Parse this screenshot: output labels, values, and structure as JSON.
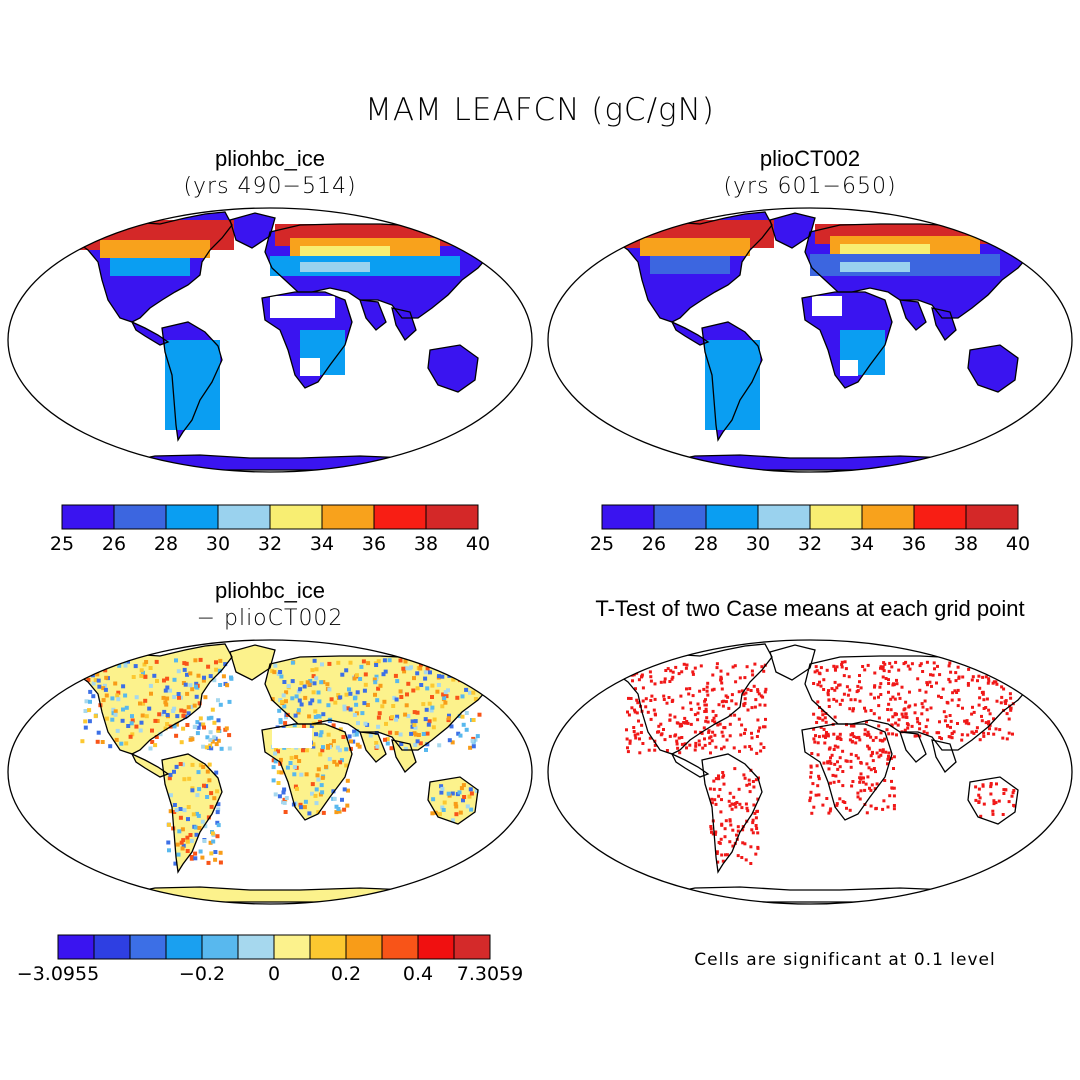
{
  "figure": {
    "title": "MAM LEAFCN (gC/gN)"
  },
  "panels": [
    {
      "title": "pliohbc_ice",
      "subtitle": "(yrs 490−514)",
      "colorbar": {
        "colors": [
          "#3a14f0",
          "#3c66e0",
          "#0a9ef2",
          "#9ad2ee",
          "#f8ee72",
          "#f8a21c",
          "#f81e14",
          "#d42828"
        ],
        "labels": [
          "25",
          "26",
          "28",
          "30",
          "32",
          "34",
          "36",
          "38",
          "40"
        ]
      }
    },
    {
      "title": "plioCT002",
      "subtitle": "(yrs 601−650)",
      "colorbar": {
        "colors": [
          "#3a14f0",
          "#3c66e0",
          "#0a9ef2",
          "#9ad2ee",
          "#f8ee72",
          "#f8a21c",
          "#f81e14",
          "#d42828"
        ],
        "labels": [
          "25",
          "26",
          "28",
          "30",
          "32",
          "34",
          "36",
          "38",
          "40"
        ]
      }
    },
    {
      "title": "pliohbc_ice",
      "subtitle": "− plioCT002",
      "colorbar": {
        "colors": [
          "#3a14f0",
          "#2e3fe2",
          "#3c6fe6",
          "#1aa0f0",
          "#58b8ee",
          "#a6d8ee",
          "#fcf28c",
          "#fcc830",
          "#f89c18",
          "#f85418",
          "#f01010",
          "#d42a2a"
        ],
        "labels": [
          "−3.0955",
          "−0.2",
          "0",
          "0.2",
          "0.4",
          "7.3059"
        ]
      }
    },
    {
      "title": "T-Test of two Case means at each grid point",
      "note": "Cells are significant at 0.1 level",
      "dot_color": "#f01818"
    }
  ]
}
